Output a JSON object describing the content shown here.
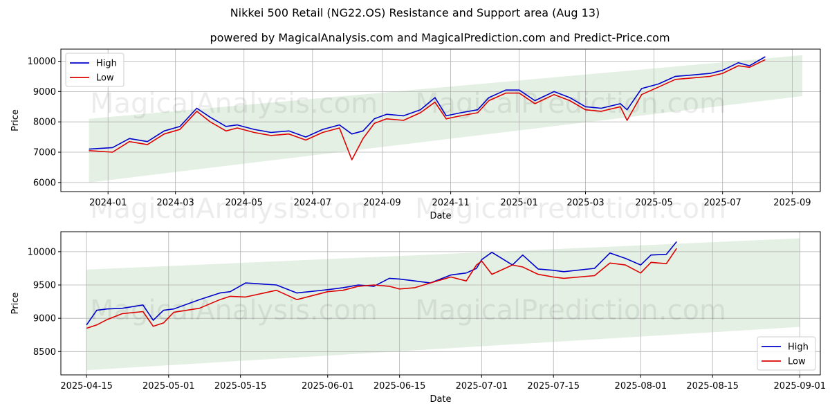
{
  "title": "Nikkei 500 Retail (NG22.OS) Resistance and Support area (Aug 13)",
  "subtitle": "powered by MagicalAnalysis.com and MagicalPrediction.com and Predict-Price.com",
  "watermarks": [
    "MagicalAnalysis.com",
    "MagicalPrediction.com"
  ],
  "colors": {
    "high": "#0000cc",
    "low": "#dd0000",
    "band": "#d5e8d4"
  },
  "chart_data": [
    {
      "type": "line",
      "xlabel": "Date",
      "ylabel": "Price",
      "xlim": [
        "2023-11-20",
        "2025-09-26"
      ],
      "ylim": [
        5700,
        10400
      ],
      "x_ticks": [
        "2024-01",
        "2024-03",
        "2024-05",
        "2024-07",
        "2024-09",
        "2024-11",
        "2025-01",
        "2025-03",
        "2025-05",
        "2025-07",
        "2025-09"
      ],
      "y_ticks": [
        6000,
        7000,
        8000,
        9000,
        10000
      ],
      "legend_position": "top-left",
      "band": {
        "x": [
          "2023-12-15",
          "2025-09-10"
        ],
        "upper": [
          8100,
          10200
        ],
        "lower": [
          6000,
          8850
        ]
      },
      "x": [
        "2023-12-15",
        "2024-01-05",
        "2024-01-20",
        "2024-02-05",
        "2024-02-20",
        "2024-03-05",
        "2024-03-20",
        "2024-04-01",
        "2024-04-15",
        "2024-04-25",
        "2024-05-10",
        "2024-05-25",
        "2024-06-10",
        "2024-06-25",
        "2024-07-10",
        "2024-07-25",
        "2024-08-05",
        "2024-08-15",
        "2024-08-25",
        "2024-09-05",
        "2024-09-20",
        "2024-10-05",
        "2024-10-18",
        "2024-10-28",
        "2024-11-10",
        "2024-11-25",
        "2024-12-05",
        "2024-12-20",
        "2025-01-01",
        "2025-01-15",
        "2025-02-01",
        "2025-02-15",
        "2025-03-01",
        "2025-03-15",
        "2025-04-01",
        "2025-04-07",
        "2025-04-20",
        "2025-05-05",
        "2025-05-20",
        "2025-06-05",
        "2025-06-20",
        "2025-07-01",
        "2025-07-15",
        "2025-07-25",
        "2025-08-08"
      ],
      "series": [
        {
          "name": "High",
          "values": [
            7100,
            7150,
            7450,
            7350,
            7700,
            7850,
            8450,
            8150,
            7850,
            7900,
            7750,
            7650,
            7700,
            7500,
            7750,
            7900,
            7600,
            7700,
            8100,
            8250,
            8200,
            8400,
            8800,
            8200,
            8300,
            8400,
            8800,
            9050,
            9050,
            8700,
            9000,
            8800,
            8500,
            8450,
            8600,
            8400,
            9100,
            9250,
            9500,
            9550,
            9600,
            9700,
            9950,
            9850,
            10150
          ]
        },
        {
          "name": "Low",
          "values": [
            7050,
            7000,
            7350,
            7250,
            7600,
            7750,
            8350,
            8000,
            7700,
            7800,
            7650,
            7550,
            7600,
            7400,
            7650,
            7800,
            6750,
            7450,
            7950,
            8100,
            8050,
            8300,
            8650,
            8100,
            8200,
            8300,
            8700,
            8950,
            8950,
            8600,
            8900,
            8700,
            8400,
            8350,
            8500,
            8050,
            8900,
            9150,
            9400,
            9450,
            9500,
            9600,
            9850,
            9800,
            10050
          ]
        }
      ]
    },
    {
      "type": "line",
      "xlabel": "Date",
      "ylabel": "Price",
      "xlim": [
        "2025-04-10",
        "2025-09-05"
      ],
      "ylim": [
        8150,
        10300
      ],
      "x_ticks": [
        "2025-04-15",
        "2025-05-01",
        "2025-05-15",
        "2025-06-01",
        "2025-06-15",
        "2025-07-01",
        "2025-07-15",
        "2025-08-01",
        "2025-08-15",
        "2025-09-01"
      ],
      "y_ticks": [
        8500,
        9000,
        9500,
        10000
      ],
      "legend_position": "bottom-right",
      "band": {
        "x": [
          "2025-04-15",
          "2025-09-01"
        ],
        "upper": [
          9730,
          10200
        ],
        "lower": [
          8220,
          8870
        ]
      },
      "x": [
        "2025-04-15",
        "2025-04-17",
        "2025-04-19",
        "2025-04-22",
        "2025-04-26",
        "2025-04-28",
        "2025-04-30",
        "2025-05-02",
        "2025-05-07",
        "2025-05-11",
        "2025-05-13",
        "2025-05-16",
        "2025-05-22",
        "2025-05-26",
        "2025-06-01",
        "2025-06-04",
        "2025-06-07",
        "2025-06-10",
        "2025-06-13",
        "2025-06-15",
        "2025-06-18",
        "2025-06-21",
        "2025-06-25",
        "2025-06-28",
        "2025-06-30",
        "2025-07-01",
        "2025-07-03",
        "2025-07-07",
        "2025-07-09",
        "2025-07-12",
        "2025-07-15",
        "2025-07-17",
        "2025-07-23",
        "2025-07-26",
        "2025-07-29",
        "2025-08-01",
        "2025-08-03",
        "2025-08-06",
        "2025-08-08"
      ],
      "series": [
        {
          "name": "High",
          "values": [
            8900,
            9120,
            9140,
            9150,
            9200,
            8970,
            9120,
            9140,
            9280,
            9380,
            9400,
            9530,
            9500,
            9380,
            9430,
            9460,
            9500,
            9480,
            9600,
            9590,
            9560,
            9530,
            9650,
            9680,
            9750,
            9880,
            9990,
            9800,
            9950,
            9740,
            9720,
            9700,
            9750,
            9980,
            9900,
            9800,
            9950,
            9960,
            10150
          ]
        },
        {
          "name": "Low",
          "values": [
            8850,
            8900,
            8980,
            9070,
            9100,
            8880,
            8930,
            9090,
            9150,
            9280,
            9330,
            9320,
            9420,
            9280,
            9400,
            9420,
            9480,
            9500,
            9480,
            9440,
            9460,
            9530,
            9620,
            9560,
            9800,
            9860,
            9660,
            9800,
            9770,
            9660,
            9620,
            9600,
            9640,
            9830,
            9800,
            9680,
            9840,
            9820,
            10050
          ]
        }
      ]
    }
  ]
}
